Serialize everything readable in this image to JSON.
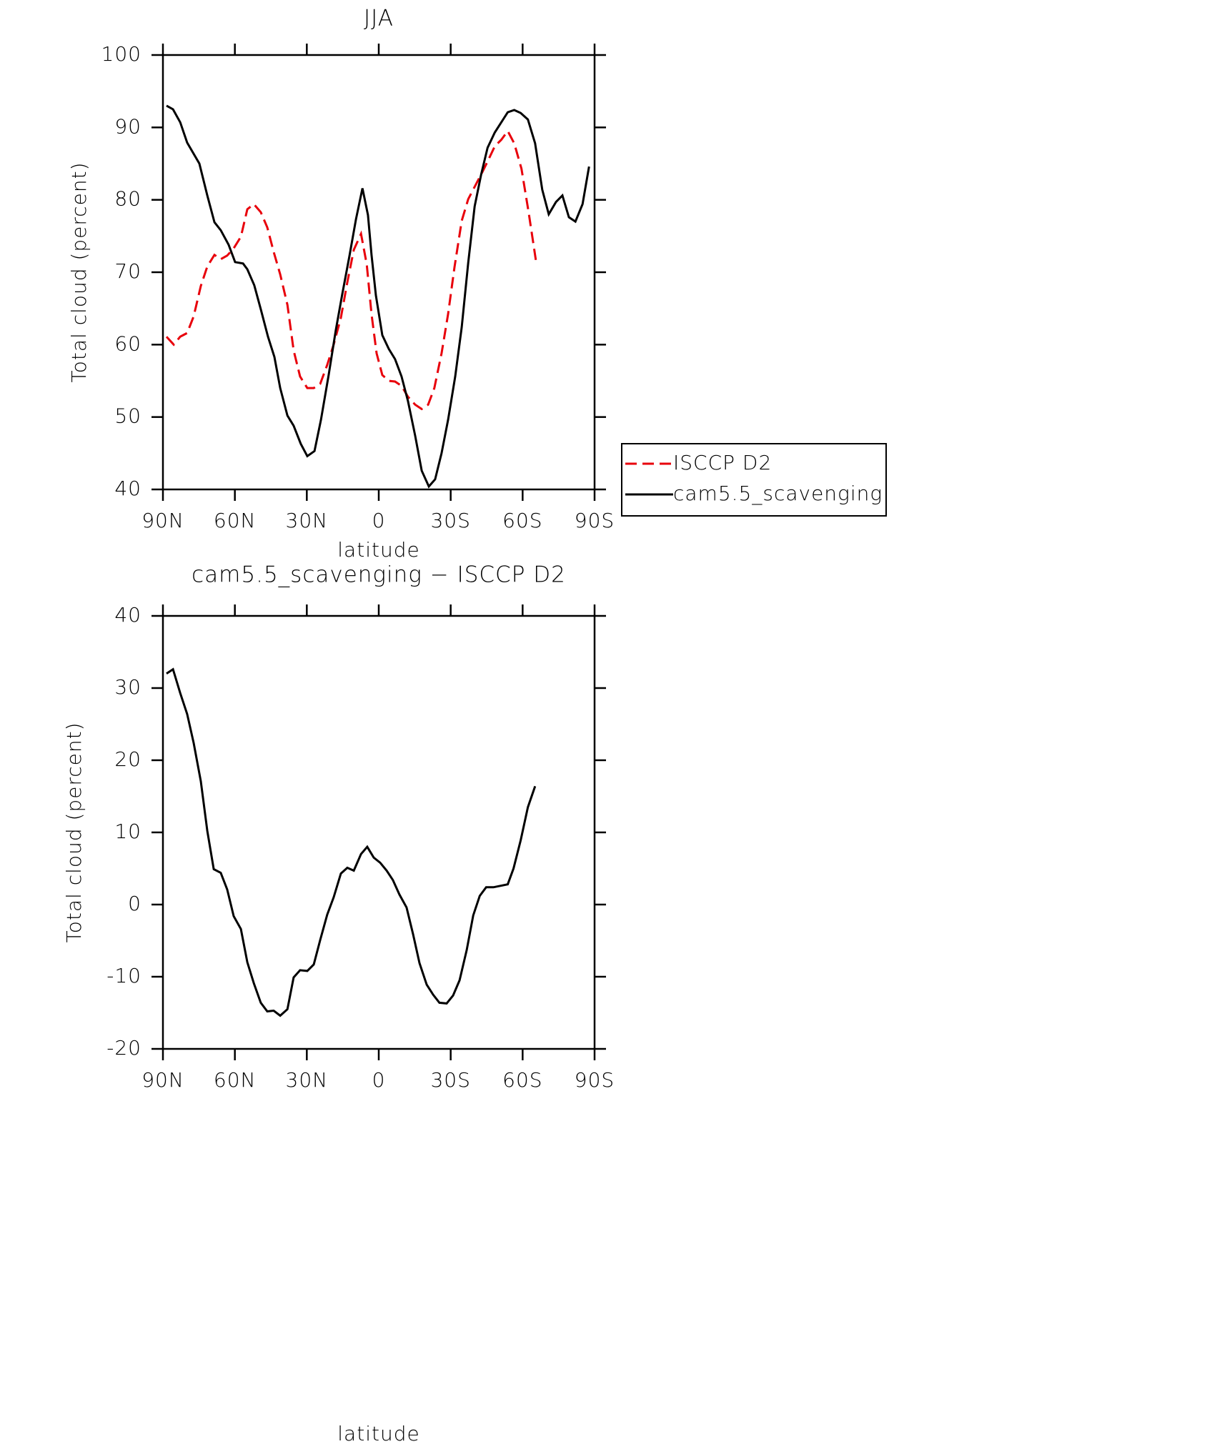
{
  "chart_data": [
    {
      "type": "line",
      "title": "JJA",
      "xlabel": "latitude",
      "ylabel": "Total cloud (percent)",
      "xlim": [
        90,
        -90
      ],
      "xticks": [
        {
          "value": 90,
          "label": "90N"
        },
        {
          "value": 60,
          "label": "60N"
        },
        {
          "value": 30,
          "label": "30N"
        },
        0,
        {
          "value": -30,
          "label": "30S"
        },
        {
          "value": -60,
          "label": "60S"
        },
        {
          "value": -90,
          "label": "90S"
        }
      ],
      "ylim": [
        40,
        100
      ],
      "yticks": [
        40,
        50,
        60,
        70,
        80,
        90,
        100
      ],
      "legend": "right",
      "series": [
        {
          "name": "ISCCP D2",
          "color": "#e8000b",
          "linestyle": "dashed",
          "x": [
            88.5,
            85.5,
            82.8,
            79.9,
            77.2,
            74.2,
            71.5,
            68.5,
            65.9,
            63.2,
            60.5,
            57.5,
            54.8,
            52.1,
            49.2,
            46.5,
            43.8,
            41.1,
            38.1,
            35.5,
            32.8,
            29.8,
            27.1,
            24.4,
            21.5,
            18.8,
            15.8,
            13.1,
            10.4,
            7.4,
            5,
            3,
            0.9,
            -1.5,
            -4.2,
            -6.8,
            -9.5,
            -12.2,
            -15.2,
            -17.9,
            -20.6,
            -23.2,
            -26.2,
            -28.9,
            -31.6,
            -34.6,
            -37.3,
            -40,
            -43,
            -45.7,
            -48.4,
            -51.1,
            -53.8,
            -56.5,
            -59.5,
            -62.5,
            -65.5
          ],
          "values": [
            61.1,
            60,
            61.1,
            61.6,
            63.9,
            68.1,
            70.8,
            72.4,
            71.8,
            72.3,
            73.3,
            74.9,
            78.7,
            79.4,
            78.3,
            76.2,
            72.8,
            69.7,
            65.5,
            59.2,
            55.6,
            54,
            54,
            54.6,
            57.2,
            60,
            63.7,
            68.6,
            73.1,
            75.3,
            71.1,
            64.2,
            58.8,
            55.8,
            55,
            54.9,
            54.3,
            52.8,
            51.7,
            51.1,
            51.7,
            54,
            58.8,
            64.2,
            70.7,
            77.1,
            80.1,
            81.8,
            83.7,
            85.5,
            87.4,
            88.3,
            89.5,
            87.8,
            84.3,
            78.3,
            71.7
          ]
        },
        {
          "name": "cam5.5_scavenging",
          "color": "#000000",
          "linestyle": "solid",
          "x": [
            88.5,
            85.8,
            82.8,
            79.9,
            74.8,
            71.5,
            68.5,
            65.9,
            62.6,
            59.9,
            56.6,
            54.8,
            51.9,
            49.2,
            46.2,
            43.5,
            41.1,
            38.1,
            35.5,
            32.5,
            29.8,
            26.8,
            24.1,
            20.9,
            17.9,
            15.2,
            12.2,
            9.5,
            6.8,
            4.5,
            3,
            1.2,
            -1.5,
            -4.2,
            -6.8,
            -9.5,
            -12.2,
            -15.2,
            -17.9,
            -20.9,
            -23.5,
            -26.2,
            -28.9,
            -31.9,
            -34.6,
            -37.3,
            -40,
            -42.7,
            -45.4,
            -48.4,
            -51.1,
            -53.8,
            -56.5,
            -59.2,
            -62.2,
            -65.2,
            -68.2,
            -70.9,
            -73.9,
            -76.6,
            -79.3,
            -82,
            -85,
            -87.7
          ],
          "values": [
            93,
            92.5,
            90.7,
            87.9,
            85,
            80.6,
            76.9,
            75.8,
            73.8,
            71.4,
            71.2,
            70.4,
            68.2,
            64.9,
            61.1,
            58.3,
            54,
            50.2,
            48.8,
            46.3,
            44.6,
            45.3,
            49.6,
            55.8,
            62,
            67,
            72.3,
            77.3,
            81.6,
            77.9,
            72.4,
            66.8,
            61.3,
            59.4,
            58,
            55.6,
            52.2,
            47.4,
            42.6,
            40.4,
            41.4,
            45,
            49.6,
            55.6,
            62.4,
            71.3,
            79.1,
            83.5,
            87.2,
            89.3,
            90.7,
            92.1,
            92.4,
            92,
            91.1,
            87.8,
            81.4,
            78,
            79.7,
            80.6,
            77.6,
            77,
            79.4,
            84.6
          ]
        }
      ]
    },
    {
      "type": "line",
      "title": "cam5.5_scavenging − ISCCP D2",
      "xlabel": "latitude",
      "ylabel": "Total cloud (percent)",
      "xlim": [
        90,
        -90
      ],
      "xticks": [
        {
          "value": 90,
          "label": "90N"
        },
        {
          "value": 60,
          "label": "60N"
        },
        {
          "value": 30,
          "label": "30N"
        },
        0,
        {
          "value": -30,
          "label": "30S"
        },
        {
          "value": -60,
          "label": "60S"
        },
        {
          "value": -90,
          "label": "90S"
        }
      ],
      "ylim": [
        -20,
        40
      ],
      "yticks": [
        -20,
        -10,
        0,
        10,
        20,
        30,
        40
      ],
      "series": [
        {
          "color": "#000000",
          "linestyle": "solid",
          "x": [
            88.5,
            85.8,
            82.8,
            79.9,
            77.2,
            74.2,
            71.5,
            68.8,
            65.9,
            63.2,
            60.5,
            57.5,
            54.8,
            52.1,
            49.2,
            46.5,
            43.8,
            41.1,
            38.1,
            35.5,
            32.8,
            29.8,
            27.1,
            24.4,
            21.5,
            18.8,
            15.8,
            13.1,
            10.4,
            7.4,
            4.8,
            2.1,
            -0.6,
            -3.3,
            -5.9,
            -8.6,
            -11.6,
            -14.3,
            -17,
            -20,
            -22.7,
            -25.3,
            -28.3,
            -31,
            -33.7,
            -36.7,
            -39.4,
            -42.1,
            -44.8,
            -47.8,
            -53.8,
            -56.2,
            -59.2,
            -62.2,
            -65.2
          ],
          "values": [
            32,
            32.6,
            29.3,
            26.4,
            22.4,
            17.1,
            10.2,
            4.9,
            4.4,
            2.1,
            -1.6,
            -3.4,
            -8,
            -10.9,
            -13.6,
            -14.8,
            -14.7,
            -15.4,
            -14.5,
            -10.1,
            -9.1,
            -9.2,
            -8.3,
            -4.9,
            -1.4,
            1,
            4.3,
            5.1,
            4.7,
            7,
            8,
            6.5,
            5.8,
            4.7,
            3.4,
            1.4,
            -0.4,
            -4.1,
            -8.1,
            -11.1,
            -12.5,
            -13.6,
            -13.7,
            -12.6,
            -10.5,
            -6.3,
            -1.5,
            1.2,
            2.4,
            2.4,
            2.8,
            5,
            8.9,
            13.5,
            16.4
          ]
        }
      ]
    }
  ]
}
